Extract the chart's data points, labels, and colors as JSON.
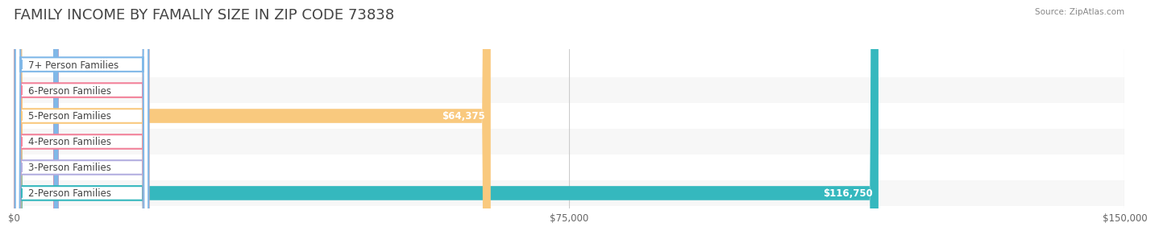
{
  "title": "FAMILY INCOME BY FAMALIY SIZE IN ZIP CODE 73838",
  "source": "Source: ZipAtlas.com",
  "categories": [
    "2-Person Families",
    "3-Person Families",
    "4-Person Families",
    "5-Person Families",
    "6-Person Families",
    "7+ Person Families"
  ],
  "values": [
    116750,
    0,
    0,
    64375,
    0,
    0
  ],
  "bar_colors": [
    "#35b8be",
    "#b3aee0",
    "#f2829a",
    "#f9c97e",
    "#f2829a",
    "#80b8e8"
  ],
  "label_colors": [
    "#35b8be",
    "#b3aee0",
    "#f2829a",
    "#f9c97e",
    "#f2829a",
    "#80b8e8"
  ],
  "bg_row_color": "#f0f0f0",
  "xlim": [
    0,
    150000
  ],
  "xtick_vals": [
    0,
    75000,
    150000
  ],
  "xtick_labels": [
    "$0",
    "$75,000",
    "$150,000"
  ],
  "title_color": "#333333",
  "source_color": "#888888",
  "title_fontsize": 13,
  "bar_height": 0.55,
  "label_fontsize": 8.5,
  "value_fontsize": 8.5
}
